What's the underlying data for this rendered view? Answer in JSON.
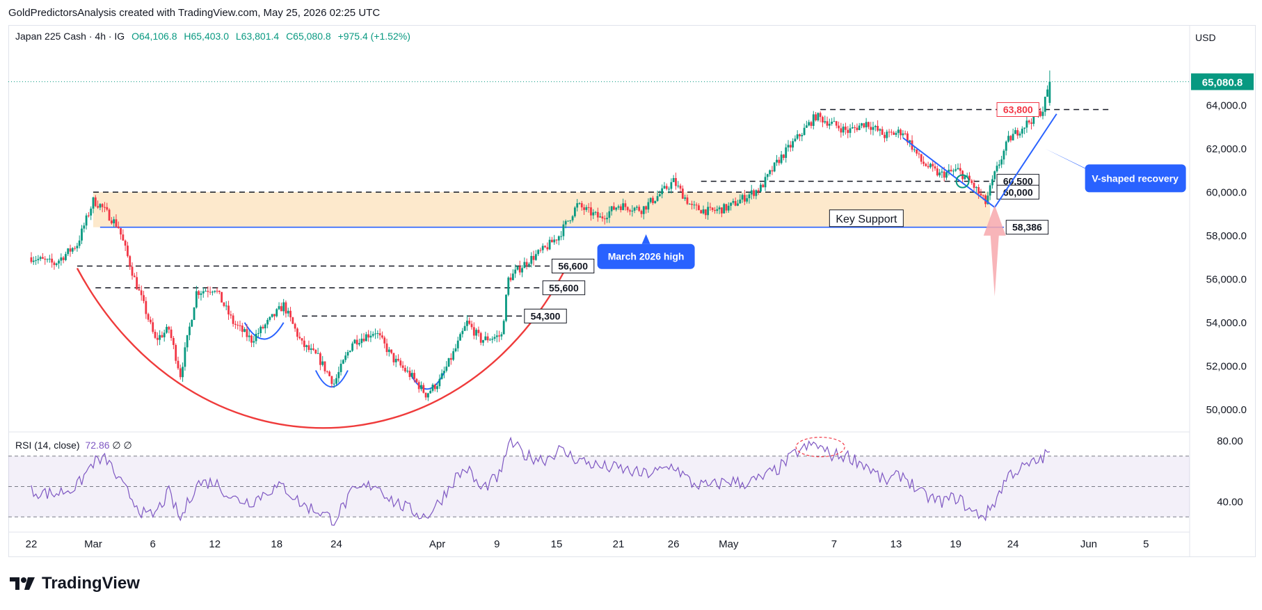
{
  "header": {
    "attribution": "GoldPredictorsAnalysis created with TradingView.com, May 25, 2026 02:25 UTC"
  },
  "legend": {
    "symbol": "Japan 225 Cash · 4h · IG",
    "open": "O64,106.8",
    "high": "H65,403.0",
    "low": "L63,801.4",
    "close": "C65,080.8",
    "change": "+975.4 (+1.52%)"
  },
  "currency": "USD",
  "last_price": "65,080.8",
  "rsi_legend": {
    "label": "RSI (14, close)",
    "value": "72.86",
    "extra": "∅ ∅"
  },
  "annotations": {
    "res_63800": "63,800",
    "lvl_60500": "60,500",
    "lvl_60000": "60,000",
    "lvl_58386": "58,386",
    "lvl_56600": "56,600",
    "lvl_55600": "55,600",
    "lvl_54300": "54,300",
    "key_support": "Key Support",
    "march_high": "March 2026 high",
    "v_recovery": "V-shaped recovery"
  },
  "footer": {
    "brand": "TradingView"
  },
  "colors": {
    "up": "#089981",
    "down": "#f23645",
    "zone": "#fde9cc",
    "blue": "#2962ff",
    "rsi": "#7e57c2",
    "cup": "#ef3b3b"
  },
  "chart_data": {
    "type": "candlestick",
    "title": "Japan 225 Cash · 4h · IG",
    "y_ticks": [
      "64,000.0",
      "62,000.0",
      "60,000.0",
      "58,000.0",
      "56,000.0",
      "54,000.0",
      "52,000.0",
      "50,000.0"
    ],
    "y_tick_values": [
      64000,
      62000,
      60000,
      58000,
      56000,
      54000,
      52000,
      50000
    ],
    "ylim": [
      49000,
      66600
    ],
    "x_ticks": [
      "22",
      "Mar",
      "6",
      "12",
      "18",
      "24",
      "Apr",
      "9",
      "15",
      "21",
      "26",
      "May",
      "7",
      "13",
      "19",
      "24",
      "Jun",
      "5"
    ],
    "x_tick_index": [
      0,
      27,
      53,
      80,
      107,
      133,
      177,
      203,
      229,
      256,
      280,
      304,
      350,
      377,
      403,
      428,
      461,
      486
    ],
    "x_range": [
      -10,
      505
    ],
    "levels": [
      63800,
      60500,
      60000,
      58386,
      56600,
      55600,
      54300
    ],
    "zone": [
      58386,
      60000
    ],
    "anchors": [
      [
        0,
        57000
      ],
      [
        10,
        56700
      ],
      [
        20,
        57600
      ],
      [
        27,
        59600
      ],
      [
        30,
        59400
      ],
      [
        38,
        58400
      ],
      [
        45,
        56000
      ],
      [
        50,
        54500
      ],
      [
        54,
        53200
      ],
      [
        60,
        53700
      ],
      [
        65,
        51600
      ],
      [
        72,
        55400
      ],
      [
        80,
        55600
      ],
      [
        88,
        54000
      ],
      [
        96,
        53200
      ],
      [
        104,
        54100
      ],
      [
        110,
        54800
      ],
      [
        118,
        53000
      ],
      [
        125,
        52400
      ],
      [
        132,
        51200
      ],
      [
        140,
        53100
      ],
      [
        150,
        53600
      ],
      [
        158,
        52300
      ],
      [
        166,
        51500
      ],
      [
        172,
        50700
      ],
      [
        178,
        51300
      ],
      [
        185,
        52800
      ],
      [
        190,
        54000
      ],
      [
        196,
        53200
      ],
      [
        205,
        53400
      ],
      [
        208,
        56000
      ],
      [
        216,
        56800
      ],
      [
        224,
        57400
      ],
      [
        230,
        58000
      ],
      [
        238,
        59400
      ],
      [
        248,
        58800
      ],
      [
        256,
        59400
      ],
      [
        266,
        59200
      ],
      [
        274,
        59900
      ],
      [
        280,
        60500
      ],
      [
        288,
        59300
      ],
      [
        296,
        59100
      ],
      [
        304,
        59300
      ],
      [
        310,
        59700
      ],
      [
        318,
        60200
      ],
      [
        326,
        61500
      ],
      [
        334,
        62500
      ],
      [
        342,
        63500
      ],
      [
        348,
        63200
      ],
      [
        356,
        62800
      ],
      [
        364,
        63200
      ],
      [
        372,
        62600
      ],
      [
        380,
        62800
      ],
      [
        388,
        61400
      ],
      [
        396,
        60800
      ],
      [
        404,
        61000
      ],
      [
        410,
        60400
      ],
      [
        416,
        59500
      ],
      [
        420,
        60800
      ],
      [
        426,
        62400
      ],
      [
        432,
        63000
      ],
      [
        438,
        63500
      ],
      [
        441,
        63800
      ],
      [
        444,
        65080
      ]
    ],
    "rsi": {
      "label": "RSI (14, close)",
      "last": 72.86,
      "levels": [
        70,
        50,
        30
      ],
      "ylim": [
        20,
        85
      ],
      "ticks": [
        "80.00",
        "40.00"
      ],
      "anchors": [
        [
          0,
          47
        ],
        [
          10,
          45
        ],
        [
          20,
          50
        ],
        [
          27,
          66
        ],
        [
          33,
          68
        ],
        [
          38,
          54
        ],
        [
          45,
          40
        ],
        [
          50,
          30
        ],
        [
          54,
          32
        ],
        [
          60,
          46
        ],
        [
          65,
          28
        ],
        [
          72,
          52
        ],
        [
          80,
          53
        ],
        [
          88,
          42
        ],
        [
          96,
          40
        ],
        [
          104,
          48
        ],
        [
          110,
          50
        ],
        [
          118,
          38
        ],
        [
          125,
          34
        ],
        [
          132,
          28
        ],
        [
          140,
          46
        ],
        [
          150,
          52
        ],
        [
          158,
          40
        ],
        [
          166,
          34
        ],
        [
          172,
          30
        ],
        [
          178,
          40
        ],
        [
          185,
          56
        ],
        [
          190,
          62
        ],
        [
          196,
          48
        ],
        [
          205,
          58
        ],
        [
          208,
          80
        ],
        [
          216,
          70
        ],
        [
          224,
          68
        ],
        [
          230,
          74
        ],
        [
          238,
          68
        ],
        [
          248,
          63
        ],
        [
          256,
          62
        ],
        [
          266,
          58
        ],
        [
          274,
          60
        ],
        [
          280,
          64
        ],
        [
          288,
          52
        ],
        [
          296,
          50
        ],
        [
          304,
          54
        ],
        [
          310,
          52
        ],
        [
          318,
          55
        ],
        [
          326,
          62
        ],
        [
          334,
          73
        ],
        [
          342,
          78
        ],
        [
          348,
          71
        ],
        [
          356,
          70
        ],
        [
          364,
          64
        ],
        [
          372,
          53
        ],
        [
          380,
          58
        ],
        [
          388,
          45
        ],
        [
          396,
          40
        ],
        [
          404,
          43
        ],
        [
          410,
          33
        ],
        [
          416,
          31
        ],
        [
          420,
          40
        ],
        [
          426,
          58
        ],
        [
          432,
          62
        ],
        [
          438,
          66
        ],
        [
          441,
          69
        ],
        [
          444,
          72.86
        ]
      ]
    }
  }
}
